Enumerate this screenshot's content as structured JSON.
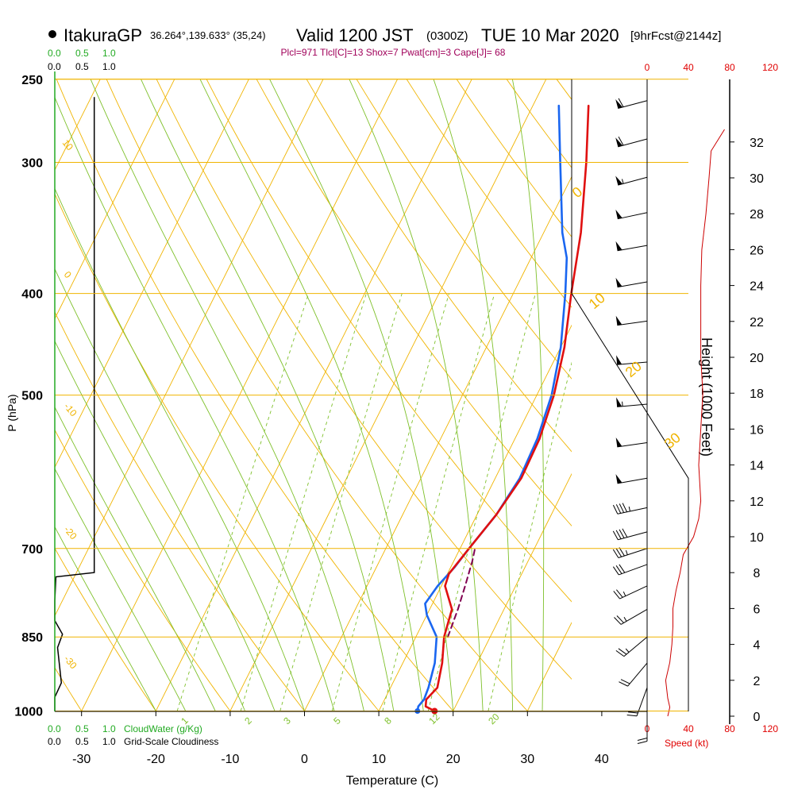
{
  "header": {
    "station": "ItakuraGP",
    "coords": "36.264°,139.633° (35,24)",
    "valid": "Valid 1200 JST",
    "utc": "(0300Z)",
    "date": "TUE 10 Mar 2020",
    "fcst": "[9hrFcst@2144z]",
    "indices": "Plcl=971 Tlcl[C]=13 Shox=7 Pwat[cm]=3 Cape[J]= 68"
  },
  "colors": {
    "isobar": "#f0b400",
    "temp": "#e01010",
    "dew": "#1a66f0",
    "parcel": "#800050",
    "mixing": "#7ec02a",
    "cloud": "#22aa22",
    "wind": "#cc0000"
  },
  "labels": {
    "cloud_top_green": [
      "0.0",
      "0.5",
      "1.0"
    ],
    "cloud_top_black": [
      "0.0",
      "0.5",
      "1.0"
    ],
    "cloud_bottom_green": [
      "0.0",
      "0.5",
      "1.0"
    ],
    "cloud_bottom_black": [
      "0.0",
      "0.5",
      "1.0"
    ],
    "cloudwater": "CloudWater (g/Kg)",
    "cloudiness": "Grid-Scale Cloudiness",
    "speed": "Speed (kt)",
    "speed_ticks": [
      "0",
      "40",
      "80",
      "120"
    ]
  },
  "chart_data": {
    "type": "skew-t",
    "xlabel": "Temperature (C)",
    "ylabel": "P (hPa)",
    "y2label": "Height (1000 Feet)",
    "xticks": [
      -30,
      -20,
      -10,
      0,
      10,
      20,
      30,
      40
    ],
    "pressure_ticks": [
      250,
      300,
      400,
      500,
      700,
      850,
      1000
    ],
    "height_ticks": [
      0,
      2,
      4,
      6,
      8,
      10,
      12,
      14,
      16,
      18,
      20,
      22,
      24,
      26,
      28,
      30,
      32
    ],
    "dry_adiabat_labels": [
      "10",
      "0",
      "-10",
      "-20",
      "-30"
    ],
    "moist_adiabat_labels": [
      "0",
      "10",
      "20",
      "30"
    ],
    "mixing_ratio_labels": [
      "1",
      "2",
      "3",
      "5",
      "8",
      "12",
      "20"
    ],
    "series": [
      {
        "name": "temperature",
        "points": [
          [
            1000,
            17.5
          ],
          [
            990,
            16.0
          ],
          [
            975,
            15.6
          ],
          [
            950,
            16.3
          ],
          [
            900,
            15.3
          ],
          [
            850,
            13.8
          ],
          [
            800,
            13.0
          ],
          [
            760,
            10.5
          ],
          [
            740,
            10.2
          ],
          [
            700,
            11.2
          ],
          [
            650,
            12.6
          ],
          [
            600,
            13.5
          ],
          [
            550,
            13.3
          ],
          [
            500,
            12.3
          ],
          [
            450,
            10.5
          ],
          [
            400,
            7.8
          ],
          [
            350,
            5.0
          ],
          [
            300,
            1.0
          ],
          [
            265,
            -2.5
          ]
        ]
      },
      {
        "name": "dewpoint",
        "points": [
          [
            1000,
            15.2
          ],
          [
            990,
            15.0
          ],
          [
            975,
            15.3
          ],
          [
            950,
            15.1
          ],
          [
            900,
            14.3
          ],
          [
            850,
            12.8
          ],
          [
            810,
            10.0
          ],
          [
            790,
            9.0
          ],
          [
            760,
            9.5
          ],
          [
            730,
            10.5
          ],
          [
            700,
            11.2
          ],
          [
            650,
            12.6
          ],
          [
            600,
            13.3
          ],
          [
            550,
            13.0
          ],
          [
            500,
            12.0
          ],
          [
            450,
            10.0
          ],
          [
            400,
            7.0
          ],
          [
            370,
            4.8
          ],
          [
            350,
            2.5
          ],
          [
            300,
            -2.5
          ],
          [
            265,
            -6.5
          ]
        ]
      },
      {
        "name": "parcel",
        "points": [
          [
            850,
            14.3
          ],
          [
            800,
            13.8
          ],
          [
            760,
            13.2
          ],
          [
            720,
            12.5
          ],
          [
            700,
            12.0
          ]
        ]
      }
    ],
    "cloudiness": [
      [
        1000,
        0.0
      ],
      [
        970,
        0.0
      ],
      [
        940,
        0.12
      ],
      [
        870,
        0.05
      ],
      [
        845,
        0.14
      ],
      [
        820,
        0.0
      ],
      [
        785,
        0.0
      ],
      [
        745,
        0.02
      ],
      [
        738,
        0.72
      ],
      [
        700,
        0.72
      ],
      [
        650,
        0.72
      ],
      [
        400,
        0.72
      ],
      [
        300,
        0.72
      ],
      [
        260,
        0.72
      ]
    ],
    "wind_speed_profile": [
      [
        0,
        20
      ],
      [
        0.5,
        22
      ],
      [
        1,
        20
      ],
      [
        2,
        18
      ],
      [
        3,
        22
      ],
      [
        4,
        24
      ],
      [
        5,
        25
      ],
      [
        6,
        25
      ],
      [
        7,
        28
      ],
      [
        8,
        32
      ],
      [
        9,
        35
      ],
      [
        10,
        45
      ],
      [
        11,
        50
      ],
      [
        12,
        52
      ],
      [
        14,
        50
      ],
      [
        16,
        52
      ],
      [
        18,
        54
      ],
      [
        20,
        52
      ],
      [
        22,
        52
      ],
      [
        24,
        52
      ],
      [
        26,
        53
      ],
      [
        28,
        57
      ],
      [
        30,
        60
      ],
      [
        31.5,
        62
      ],
      [
        32.7,
        75
      ]
    ],
    "wind_barbs": [
      {
        "p": 262,
        "dir": 255,
        "kt": 60
      },
      {
        "p": 285,
        "dir": 255,
        "kt": 60
      },
      {
        "p": 310,
        "dir": 255,
        "kt": 55
      },
      {
        "p": 335,
        "dir": 258,
        "kt": 50
      },
      {
        "p": 360,
        "dir": 260,
        "kt": 50
      },
      {
        "p": 390,
        "dir": 260,
        "kt": 50
      },
      {
        "p": 425,
        "dir": 262,
        "kt": 50
      },
      {
        "p": 465,
        "dir": 265,
        "kt": 50
      },
      {
        "p": 510,
        "dir": 265,
        "kt": 55
      },
      {
        "p": 555,
        "dir": 262,
        "kt": 50
      },
      {
        "p": 600,
        "dir": 260,
        "kt": 50
      },
      {
        "p": 640,
        "dir": 258,
        "kt": 45
      },
      {
        "p": 675,
        "dir": 255,
        "kt": 40
      },
      {
        "p": 700,
        "dir": 252,
        "kt": 35
      },
      {
        "p": 725,
        "dir": 250,
        "kt": 30
      },
      {
        "p": 760,
        "dir": 245,
        "kt": 25
      },
      {
        "p": 800,
        "dir": 240,
        "kt": 25
      },
      {
        "p": 850,
        "dir": 230,
        "kt": 25
      },
      {
        "p": 900,
        "dir": 220,
        "kt": 20
      },
      {
        "p": 950,
        "dir": 200,
        "kt": 20
      },
      {
        "p": 1000,
        "dir": 180,
        "kt": 20
      }
    ]
  }
}
